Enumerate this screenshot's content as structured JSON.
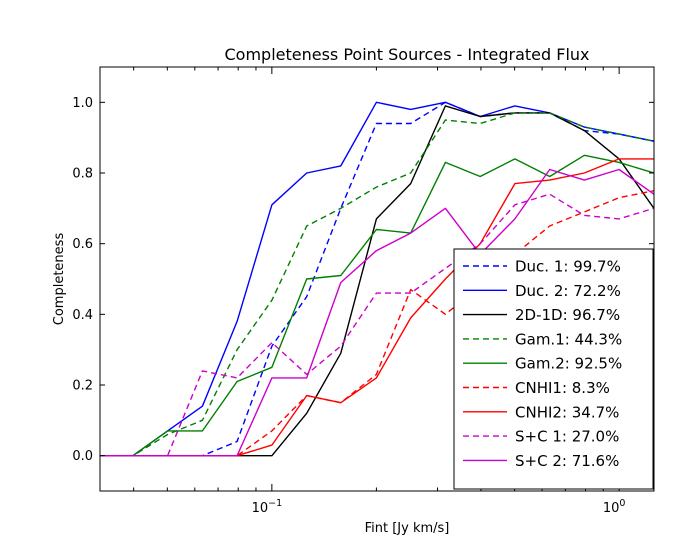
{
  "chart_data": {
    "type": "line",
    "title": "Completeness Point Sources - Integrated Flux",
    "xlabel": "Fint [Jy km/s]",
    "ylabel": "Completeness",
    "xscale": "log",
    "xlim": [
      0.032,
      1.26
    ],
    "ylim": [
      -0.1,
      1.1
    ],
    "xticks": [
      {
        "value": 0.1,
        "base": "10",
        "exp": "−1"
      },
      {
        "value": 1.0,
        "base": "10",
        "exp": "0"
      }
    ],
    "yticks": [
      {
        "value": 0.0,
        "label": "0.0"
      },
      {
        "value": 0.2,
        "label": "0.2"
      },
      {
        "value": 0.4,
        "label": "0.4"
      },
      {
        "value": 0.6,
        "label": "0.6"
      },
      {
        "value": 0.8,
        "label": "0.8"
      },
      {
        "value": 1.0,
        "label": "1.0"
      }
    ],
    "x": [
      0.0316,
      0.0398,
      0.0501,
      0.0631,
      0.0794,
      0.1,
      0.126,
      0.158,
      0.2,
      0.251,
      0.316,
      0.398,
      0.501,
      0.631,
      0.794,
      1.0,
      1.259
    ],
    "legend_position": "lower-right",
    "series": [
      {
        "name": "Duc. 1: 99.7%",
        "color": "#0000ff",
        "dash": "dashed",
        "values": [
          0,
          0,
          0,
          0,
          0.04,
          0.31,
          0.45,
          0.7,
          0.94,
          0.94,
          1.0,
          0.96,
          0.97,
          0.97,
          0.92,
          0.91,
          0.89
        ]
      },
      {
        "name": "Duc. 2: 72.2%",
        "color": "#0000ff",
        "dash": "solid",
        "values": [
          0,
          0,
          0.07,
          0.14,
          0.38,
          0.71,
          0.8,
          0.82,
          1.0,
          0.98,
          1.0,
          0.96,
          0.99,
          0.97,
          0.93,
          0.91,
          0.89
        ]
      },
      {
        "name": "2D-1D: 96.7%",
        "color": "#000000",
        "dash": "solid",
        "values": [
          0,
          0,
          0,
          0,
          0,
          0,
          0.12,
          0.29,
          0.67,
          0.77,
          0.99,
          0.96,
          0.97,
          0.97,
          0.92,
          0.84,
          0.7
        ]
      },
      {
        "name": "Gam.1: 44.3%",
        "color": "#008000",
        "dash": "dashed",
        "values": [
          0,
          0,
          0.06,
          0.1,
          0.3,
          0.44,
          0.65,
          0.7,
          0.76,
          0.8,
          0.95,
          0.94,
          0.97,
          0.97,
          0.93,
          0.91,
          0.89
        ]
      },
      {
        "name": "Gam.2: 92.5%",
        "color": "#008000",
        "dash": "solid",
        "values": [
          0,
          0,
          0.07,
          0.07,
          0.21,
          0.25,
          0.5,
          0.51,
          0.64,
          0.63,
          0.83,
          0.79,
          0.84,
          0.79,
          0.85,
          0.83,
          0.8
        ]
      },
      {
        "name": "CNHI1: 8.3%",
        "color": "#ff0000",
        "dash": "dashed",
        "values": [
          0,
          0,
          0,
          0,
          0,
          0.07,
          0.17,
          0.15,
          0.23,
          0.47,
          0.4,
          0.48,
          0.57,
          0.65,
          0.69,
          0.73,
          0.75
        ]
      },
      {
        "name": "CNHI2: 34.7%",
        "color": "#ff0000",
        "dash": "solid",
        "values": [
          0,
          0,
          0,
          0,
          0,
          0.03,
          0.17,
          0.15,
          0.22,
          0.39,
          0.5,
          0.6,
          0.77,
          0.78,
          0.8,
          0.84,
          0.84
        ]
      },
      {
        "name": "S+C 1: 27.0%",
        "color": "#cc00cc",
        "dash": "dashed",
        "values": [
          0,
          0,
          0,
          0.24,
          0.22,
          0.32,
          0.23,
          0.31,
          0.46,
          0.46,
          0.53,
          0.6,
          0.71,
          0.74,
          0.68,
          0.67,
          0.7
        ]
      },
      {
        "name": "S+C 2: 71.6%",
        "color": "#cc00cc",
        "dash": "solid",
        "values": [
          0,
          0,
          0,
          0,
          0,
          0.22,
          0.22,
          0.49,
          0.58,
          0.63,
          0.7,
          0.57,
          0.67,
          0.81,
          0.78,
          0.81,
          0.74
        ]
      }
    ]
  }
}
